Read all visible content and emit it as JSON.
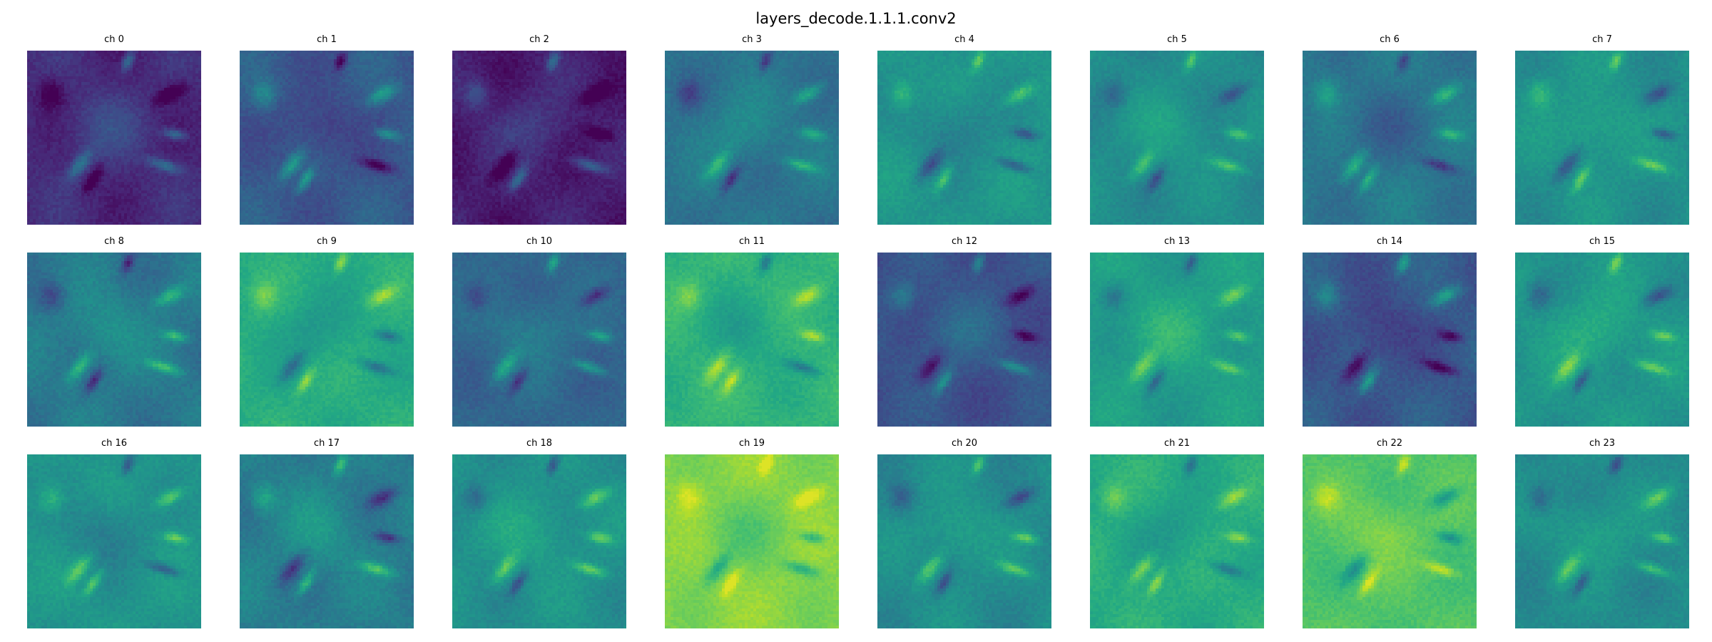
{
  "chart_data": {
    "type": "heatmap",
    "title": "layers_decode.1.1.1.conv2",
    "colormap": "viridis",
    "grid": false,
    "layout": {
      "rows": 3,
      "cols": 8
    },
    "panels": [
      {
        "title": "ch 0",
        "base": 0.12,
        "contrast": 0.55,
        "vmax": 0.8
      },
      {
        "title": "ch 1",
        "base": 0.28,
        "contrast": 0.6,
        "vmax": 0.95
      },
      {
        "title": "ch 2",
        "base": 0.08,
        "contrast": 0.55,
        "vmax": 0.9
      },
      {
        "title": "ch 3",
        "base": 0.38,
        "contrast": 0.55,
        "vmax": 0.95
      },
      {
        "title": "ch 4",
        "base": 0.52,
        "contrast": 0.55,
        "vmax": 0.95
      },
      {
        "title": "ch 5",
        "base": 0.48,
        "contrast": 0.5,
        "vmax": 0.95
      },
      {
        "title": "ch 6",
        "base": 0.4,
        "contrast": 0.55,
        "vmax": 0.95
      },
      {
        "title": "ch 7",
        "base": 0.5,
        "contrast": 0.55,
        "vmax": 0.95
      },
      {
        "title": "ch 8",
        "base": 0.4,
        "contrast": 0.6,
        "vmax": 0.95
      },
      {
        "title": "ch 9",
        "base": 0.62,
        "contrast": 0.5,
        "vmax": 0.95
      },
      {
        "title": "ch 10",
        "base": 0.33,
        "contrast": 0.55,
        "vmax": 0.95
      },
      {
        "title": "ch 11",
        "base": 0.65,
        "contrast": 0.5,
        "vmax": 0.95
      },
      {
        "title": "ch 12",
        "base": 0.25,
        "contrast": 0.55,
        "vmax": 0.95
      },
      {
        "title": "ch 13",
        "base": 0.55,
        "contrast": 0.5,
        "vmax": 0.95
      },
      {
        "title": "ch 14",
        "base": 0.28,
        "contrast": 0.6,
        "vmax": 0.95
      },
      {
        "title": "ch 15",
        "base": 0.52,
        "contrast": 0.55,
        "vmax": 0.95
      },
      {
        "title": "ch 16",
        "base": 0.52,
        "contrast": 0.55,
        "vmax": 0.95
      },
      {
        "title": "ch 17",
        "base": 0.42,
        "contrast": 0.6,
        "vmax": 0.95
      },
      {
        "title": "ch 18",
        "base": 0.5,
        "contrast": 0.55,
        "vmax": 0.95
      },
      {
        "title": "ch 19",
        "base": 0.82,
        "contrast": 0.45,
        "vmax": 0.95
      },
      {
        "title": "ch 20",
        "base": 0.48,
        "contrast": 0.55,
        "vmax": 0.95
      },
      {
        "title": "ch 21",
        "base": 0.62,
        "contrast": 0.5,
        "vmax": 0.95
      },
      {
        "title": "ch 22",
        "base": 0.72,
        "contrast": 0.5,
        "vmax": 0.95
      },
      {
        "title": "ch 23",
        "base": 0.48,
        "contrast": 0.55,
        "vmax": 0.95
      }
    ]
  }
}
